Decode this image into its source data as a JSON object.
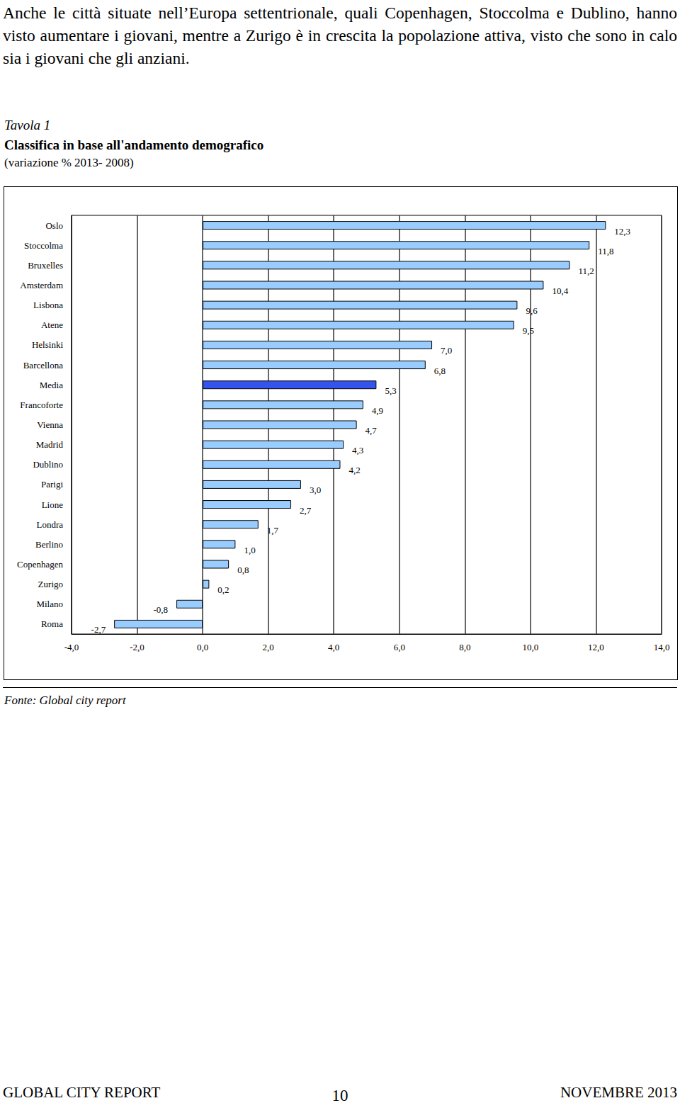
{
  "document": {
    "intro": "Anche le città situate nell’Europa settentrionale, quali Copenhagen, Stoccolma e Dublino, hanno visto aumentare i giovani, mentre a Zurigo è in crescita la popolazione attiva, visto che sono in calo sia i giovani che gli anziani.",
    "table_label": "Tavola 1",
    "source": "Fonte: Global city report",
    "footer": {
      "left": "GLOBAL CITY REPORT",
      "center": "10",
      "right": "NOVEMBRE 2013"
    }
  },
  "chart_data": {
    "type": "bar",
    "orientation": "horizontal",
    "title": "Classifica in base all'andamento demografico",
    "subtitle": "(variazione % 2013- 2008)",
    "categories": [
      "Oslo",
      "Stoccolma",
      "Bruxelles",
      "Amsterdam",
      "Lisbona",
      "Atene",
      "Helsinki",
      "Barcellona",
      "Media",
      "Francoforte",
      "Vienna",
      "Madrid",
      "Dublino",
      "Parigi",
      "Lione",
      "Londra",
      "Berlino",
      "Copenhagen",
      "Zurigo",
      "Milano",
      "Roma"
    ],
    "values": [
      12.3,
      11.8,
      11.2,
      10.4,
      9.6,
      9.5,
      7.0,
      6.8,
      5.3,
      4.9,
      4.7,
      4.3,
      4.2,
      3.0,
      2.7,
      1.7,
      1.0,
      0.8,
      0.2,
      -0.8,
      -2.7
    ],
    "value_labels": [
      "12,3",
      "11,8",
      "11,2",
      "10,4",
      "9,6",
      "9,5",
      "7,0",
      "6,8",
      "5,3",
      "4,9",
      "4,7",
      "4,3",
      "4,2",
      "3,0",
      "2,7",
      "1,7",
      "1,0",
      "0,8",
      "0,2",
      "-0,8",
      "-2,7"
    ],
    "colors": [
      "#99ccff",
      "#99ccff",
      "#99ccff",
      "#99ccff",
      "#99ccff",
      "#99ccff",
      "#99ccff",
      "#99ccff",
      "#3355ee",
      "#99ccff",
      "#99ccff",
      "#99ccff",
      "#99ccff",
      "#99ccff",
      "#99ccff",
      "#99ccff",
      "#99ccff",
      "#99ccff",
      "#99ccff",
      "#99ccff",
      "#99ccff"
    ],
    "xlim": [
      -4,
      14
    ],
    "xticks": [
      {
        "value": -4,
        "label": "-4,0"
      },
      {
        "value": -2,
        "label": "-2,0"
      },
      {
        "value": 0,
        "label": "0,0"
      },
      {
        "value": 2,
        "label": "2,0"
      },
      {
        "value": 4,
        "label": "4,0"
      },
      {
        "value": 6,
        "label": "6,0"
      },
      {
        "value": 8,
        "label": "8,0"
      },
      {
        "value": 10,
        "label": "10,0"
      },
      {
        "value": 12,
        "label": "12,0"
      },
      {
        "value": 14,
        "label": "14,0"
      }
    ],
    "grid": true,
    "data_labels": true
  }
}
